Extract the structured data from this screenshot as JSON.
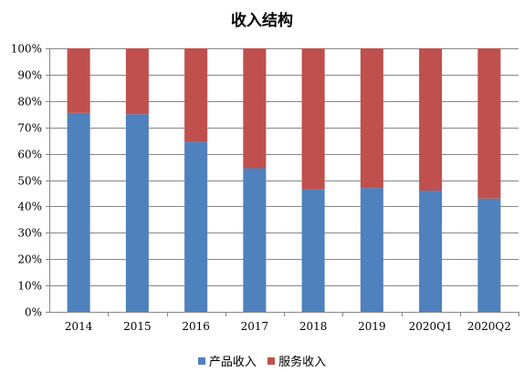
{
  "chart_data": {
    "type": "bar",
    "stacked": true,
    "title": "收入结构",
    "categories": [
      "2014",
      "2015",
      "2016",
      "2017",
      "2018",
      "2019",
      "2020Q1",
      "2020Q2"
    ],
    "series": [
      {
        "name": "产品收入",
        "color": "#4F81BD",
        "values": [
          75.5,
          75.0,
          64.5,
          54.5,
          46.5,
          47.0,
          46.0,
          43.0
        ]
      },
      {
        "name": "服务收入",
        "color": "#C0504D",
        "values": [
          24.5,
          25.0,
          35.5,
          45.5,
          53.5,
          53.0,
          54.0,
          57.0
        ]
      }
    ],
    "ylim": [
      0,
      100
    ],
    "yticks": [
      "0%",
      "10%",
      "20%",
      "30%",
      "40%",
      "50%",
      "60%",
      "70%",
      "80%",
      "90%",
      "100%"
    ],
    "grid": true,
    "legend_position": "bottom"
  }
}
